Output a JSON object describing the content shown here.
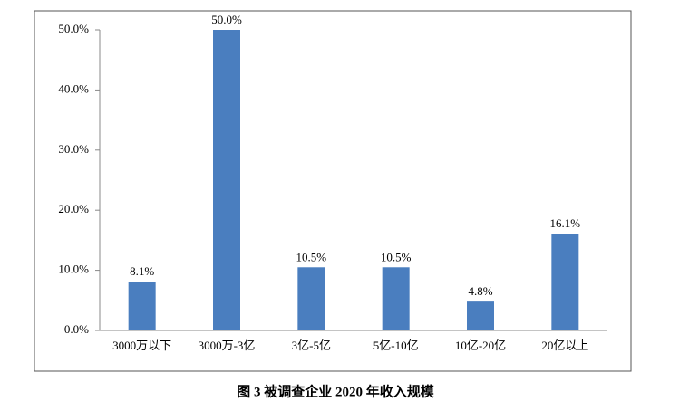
{
  "chart_data": {
    "type": "bar",
    "title": "图 3  被调查企业 2020 年收入规模",
    "categories": [
      "3000万以下",
      "3000万-3亿",
      "3亿-5亿",
      "5亿-10亿",
      "10亿-20亿",
      "20亿以上"
    ],
    "values": [
      8.1,
      50.0,
      10.5,
      10.5,
      4.8,
      16.1
    ],
    "value_labels": [
      "8.1%",
      "50.0%",
      "10.5%",
      "10.5%",
      "4.8%",
      "16.1%"
    ],
    "color": "#4a7ebf",
    "ylim": [
      0,
      50
    ],
    "yticks": [
      {
        "value": 0,
        "label": "0.0%"
      },
      {
        "value": 10,
        "label": "10.0%"
      },
      {
        "value": 20,
        "label": "20.0%"
      },
      {
        "value": 30,
        "label": "30.0%"
      },
      {
        "value": 40,
        "label": "40.0%"
      },
      {
        "value": 50,
        "label": "50.0%"
      }
    ],
    "grid": false
  }
}
